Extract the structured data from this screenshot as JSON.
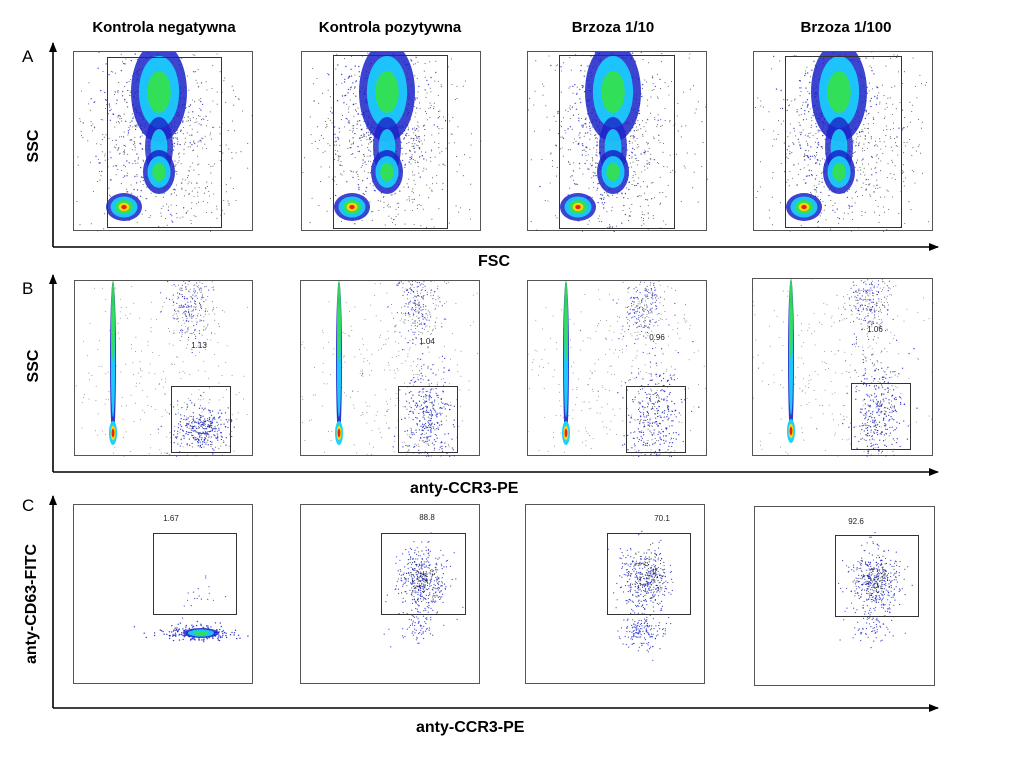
{
  "columns": [
    "Kontrola negatywna",
    "Kontrola pozytywna",
    "Brzoza 1/10",
    "Brzoza 1/100"
  ],
  "rows": [
    {
      "letter": "A",
      "xlabel": "FSC",
      "ylabel": "SSC"
    },
    {
      "letter": "B",
      "xlabel": "anty-CCR3-PE",
      "ylabel": "SSC"
    },
    {
      "letter": "C",
      "xlabel": "anty-CCR3-PE",
      "ylabel": "anty-CD63-FITC"
    }
  ],
  "colors": {
    "low": "#1a23c8",
    "mid": "#19d2ff",
    "high": "#33e050",
    "peak": "#ffd400",
    "max": "#e8231a"
  },
  "chart_data": [
    {
      "type": "scatter",
      "row": "A",
      "title": "",
      "xlabel": "FSC",
      "ylabel": "SSC",
      "panels": [
        {
          "column": "Kontrola negatywna",
          "gate_label": ""
        },
        {
          "column": "Kontrola pozytywna",
          "gate_label": ""
        },
        {
          "column": "Brzoza 1/10",
          "gate_label": ""
        },
        {
          "column": "Brzoza 1/100",
          "gate_label": ""
        }
      ]
    },
    {
      "type": "scatter",
      "row": "B",
      "title": "",
      "xlabel": "anty-CCR3-PE",
      "ylabel": "SSC",
      "panels": [
        {
          "column": "Kontrola negatywna",
          "gate_label": "1.13"
        },
        {
          "column": "Kontrola pozytywna",
          "gate_label": "1.04"
        },
        {
          "column": "Brzoza 1/10",
          "gate_label": "0.96"
        },
        {
          "column": "Brzoza 1/100",
          "gate_label": "1.06"
        }
      ]
    },
    {
      "type": "scatter",
      "row": "C",
      "title": "",
      "xlabel": "anty-CCR3-PE",
      "ylabel": "anty-CD63-FITC",
      "panels": [
        {
          "column": "Kontrola negatywna",
          "gate_label": "1.67"
        },
        {
          "column": "Kontrola pozytywna",
          "gate_label": "88.8"
        },
        {
          "column": "Brzoza 1/10",
          "gate_label": "70.1"
        },
        {
          "column": "Brzoza 1/100",
          "gate_label": "92.6"
        }
      ]
    }
  ]
}
